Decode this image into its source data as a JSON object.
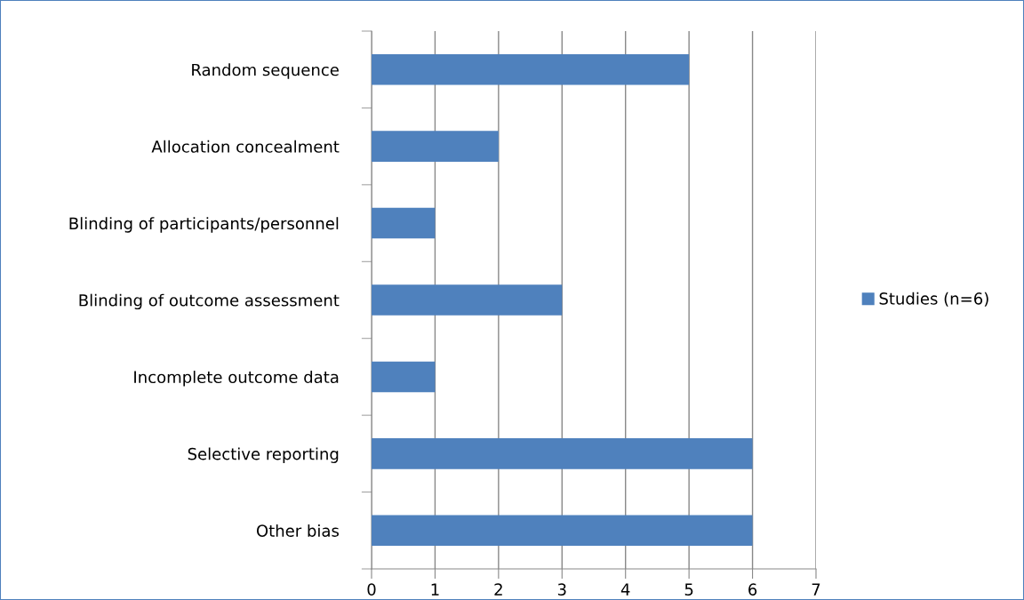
{
  "chart_data": {
    "type": "bar",
    "orientation": "horizontal",
    "categories": [
      "Random sequence",
      "Allocation concealment",
      "Blinding of participants/personnel",
      "Blinding of outcome assessment",
      "Incomplete outcome data",
      "Selective reporting",
      "Other bias"
    ],
    "series": [
      {
        "name": "Studies (n=6)",
        "color": "#4f81bd",
        "values": [
          5,
          2,
          1,
          3,
          1,
          6,
          6
        ]
      }
    ],
    "xlim": [
      0,
      7
    ],
    "xticks": [
      0,
      1,
      2,
      3,
      4,
      5,
      6,
      7
    ],
    "grid": "x",
    "legend": "right"
  }
}
